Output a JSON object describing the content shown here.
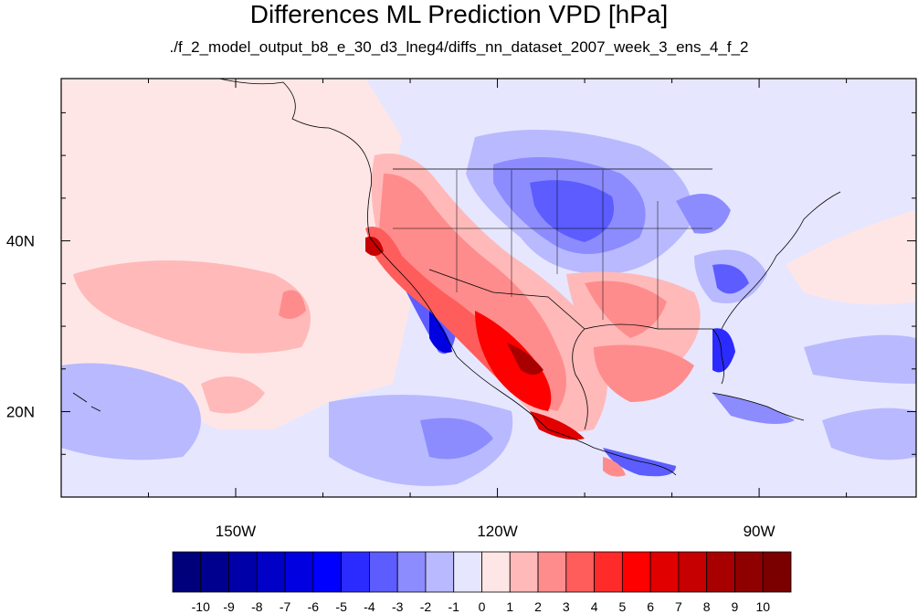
{
  "title": "Differences ML Prediction VPD [hPa]",
  "subtitle": "./f_2_model_output_b8_e_30_d3_lneg4/diffs_nn_dataset_2007_week_3_ens_4_f_2",
  "map": {
    "lon_range": [
      -170,
      -72
    ],
    "lat_range": [
      10,
      59
    ],
    "lon_ticks": [
      {
        "value": -150,
        "label": "150W"
      },
      {
        "value": -120,
        "label": "120W"
      },
      {
        "value": -90,
        "label": "90W"
      }
    ],
    "lat_ticks": [
      {
        "value": 40,
        "label": "40N"
      },
      {
        "value": 20,
        "label": "20N"
      }
    ]
  },
  "colorbar": {
    "labels": [
      "-10",
      "-9",
      "-8",
      "-7",
      "-6",
      "-5",
      "-4",
      "-3",
      "-2",
      "-1",
      "0",
      "1",
      "2",
      "3",
      "4",
      "5",
      "6",
      "7",
      "8",
      "9",
      "10"
    ],
    "colors": [
      "#00007a",
      "#00008f",
      "#0000a8",
      "#0000c6",
      "#0000e0",
      "#0000ff",
      "#2b2bff",
      "#5c5cff",
      "#8c8cff",
      "#b9b9ff",
      "#e6e6ff",
      "#ffe6e6",
      "#ffb9b9",
      "#ff8c8c",
      "#ff5c5c",
      "#ff2b2b",
      "#ff0000",
      "#e00000",
      "#c60000",
      "#a80000",
      "#8f0000",
      "#7a0000"
    ]
  }
}
